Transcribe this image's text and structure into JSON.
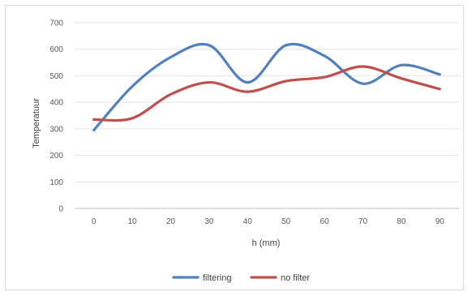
{
  "chart_data": {
    "type": "line",
    "title": "",
    "xlabel": "h (mm)",
    "ylabel": "Temperatuur",
    "x": [
      0,
      10,
      20,
      30,
      40,
      50,
      60,
      70,
      80,
      90
    ],
    "ylim": [
      0,
      700
    ],
    "yticks": [
      0,
      100,
      200,
      300,
      400,
      500,
      600,
      700
    ],
    "grid": "horizontal",
    "legend_position": "bottom",
    "series": [
      {
        "name": "filtering",
        "color": "#4f81bd",
        "values": [
          295,
          460,
          570,
          615,
          475,
          615,
          575,
          470,
          540,
          505
        ]
      },
      {
        "name": "no filter",
        "color": "#c0504d",
        "values": [
          335,
          340,
          430,
          475,
          440,
          480,
          495,
          535,
          490,
          450
        ]
      }
    ]
  }
}
